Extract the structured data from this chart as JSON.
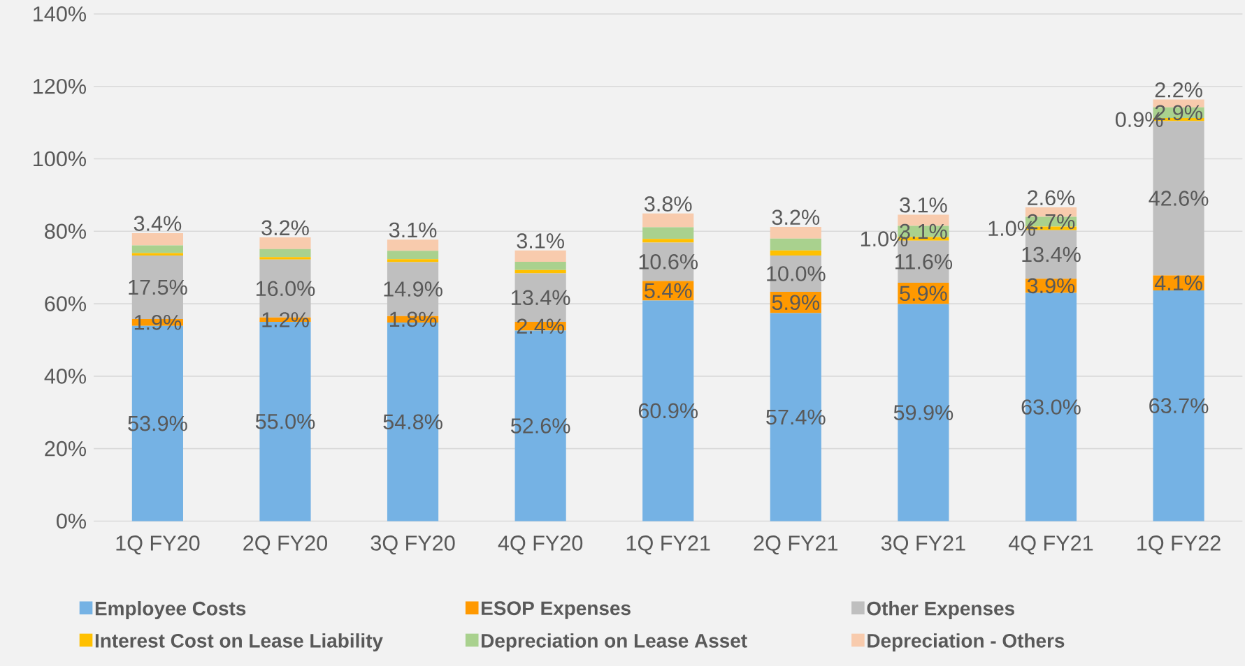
{
  "chart_data": {
    "type": "bar",
    "stacked": true,
    "categories": [
      "1Q FY20",
      "2Q FY20",
      "3Q FY20",
      "4Q FY20",
      "1Q FY21",
      "2Q FY21",
      "3Q FY21",
      "4Q FY21",
      "1Q FY22"
    ],
    "series": [
      {
        "name": "Employee Costs",
        "color": "#75b2e4",
        "values": [
          53.9,
          55.0,
          54.8,
          52.6,
          60.9,
          57.4,
          59.9,
          63.0,
          63.7
        ],
        "value_labels": [
          "53.9%",
          "55.0%",
          "54.8%",
          "52.6%",
          "60.9%",
          "57.4%",
          "59.9%",
          "63.0%",
          "63.7%"
        ]
      },
      {
        "name": "ESOP Expenses",
        "color": "#ff9900",
        "values": [
          1.9,
          1.2,
          1.8,
          2.4,
          5.4,
          5.9,
          5.9,
          3.9,
          4.1
        ],
        "value_labels": [
          "1.9%",
          "1.2%",
          "1.8%",
          "2.4%",
          "5.4%",
          "5.9%",
          "5.9%",
          "3.9%",
          "4.1%"
        ]
      },
      {
        "name": "Other Expenses",
        "color": "#bfbfbf",
        "values": [
          17.5,
          16.0,
          14.9,
          13.4,
          10.6,
          10.0,
          11.6,
          13.4,
          42.6
        ],
        "value_labels": [
          "17.5%",
          "16.0%",
          "14.9%",
          "13.4%",
          "10.6%",
          "10.0%",
          "11.6%",
          "13.4%",
          "42.6%"
        ]
      },
      {
        "name": "Interest Cost on Lease Liability",
        "color": "#ffc000",
        "values": [
          0.7,
          0.7,
          0.8,
          0.9,
          1.0,
          1.4,
          1.0,
          1.0,
          0.9
        ],
        "value_labels": [
          null,
          null,
          null,
          null,
          null,
          null,
          "1.0%",
          "1.0%",
          "0.9%"
        ]
      },
      {
        "name": "Depreciation on Lease Asset",
        "color": "#a9d18e",
        "values": [
          2.1,
          2.2,
          2.3,
          2.3,
          3.2,
          3.3,
          3.1,
          2.7,
          2.9
        ],
        "value_labels": [
          null,
          null,
          null,
          null,
          null,
          null,
          "3.1%",
          "2.7%",
          "2.9%"
        ]
      },
      {
        "name": "Depreciation - Others",
        "color": "#f8cbad",
        "values": [
          3.4,
          3.2,
          3.1,
          3.1,
          3.8,
          3.2,
          3.1,
          2.6,
          2.2
        ],
        "value_labels": [
          "3.4%",
          "3.2%",
          "3.1%",
          "3.1%",
          "3.8%",
          "3.2%",
          "3.1%",
          "2.6%",
          "2.2%"
        ]
      }
    ],
    "ylim": [
      0,
      140
    ],
    "yticks": [
      {
        "value": 0,
        "label": "0%"
      },
      {
        "value": 20,
        "label": "20%"
      },
      {
        "value": 40,
        "label": "40%"
      },
      {
        "value": 60,
        "label": "60%"
      },
      {
        "value": 80,
        "label": "80%"
      },
      {
        "value": 100,
        "label": "100%"
      },
      {
        "value": 120,
        "label": "120%"
      },
      {
        "value": 140,
        "label": "140%"
      }
    ],
    "grid": "y",
    "legend": "bottom"
  }
}
